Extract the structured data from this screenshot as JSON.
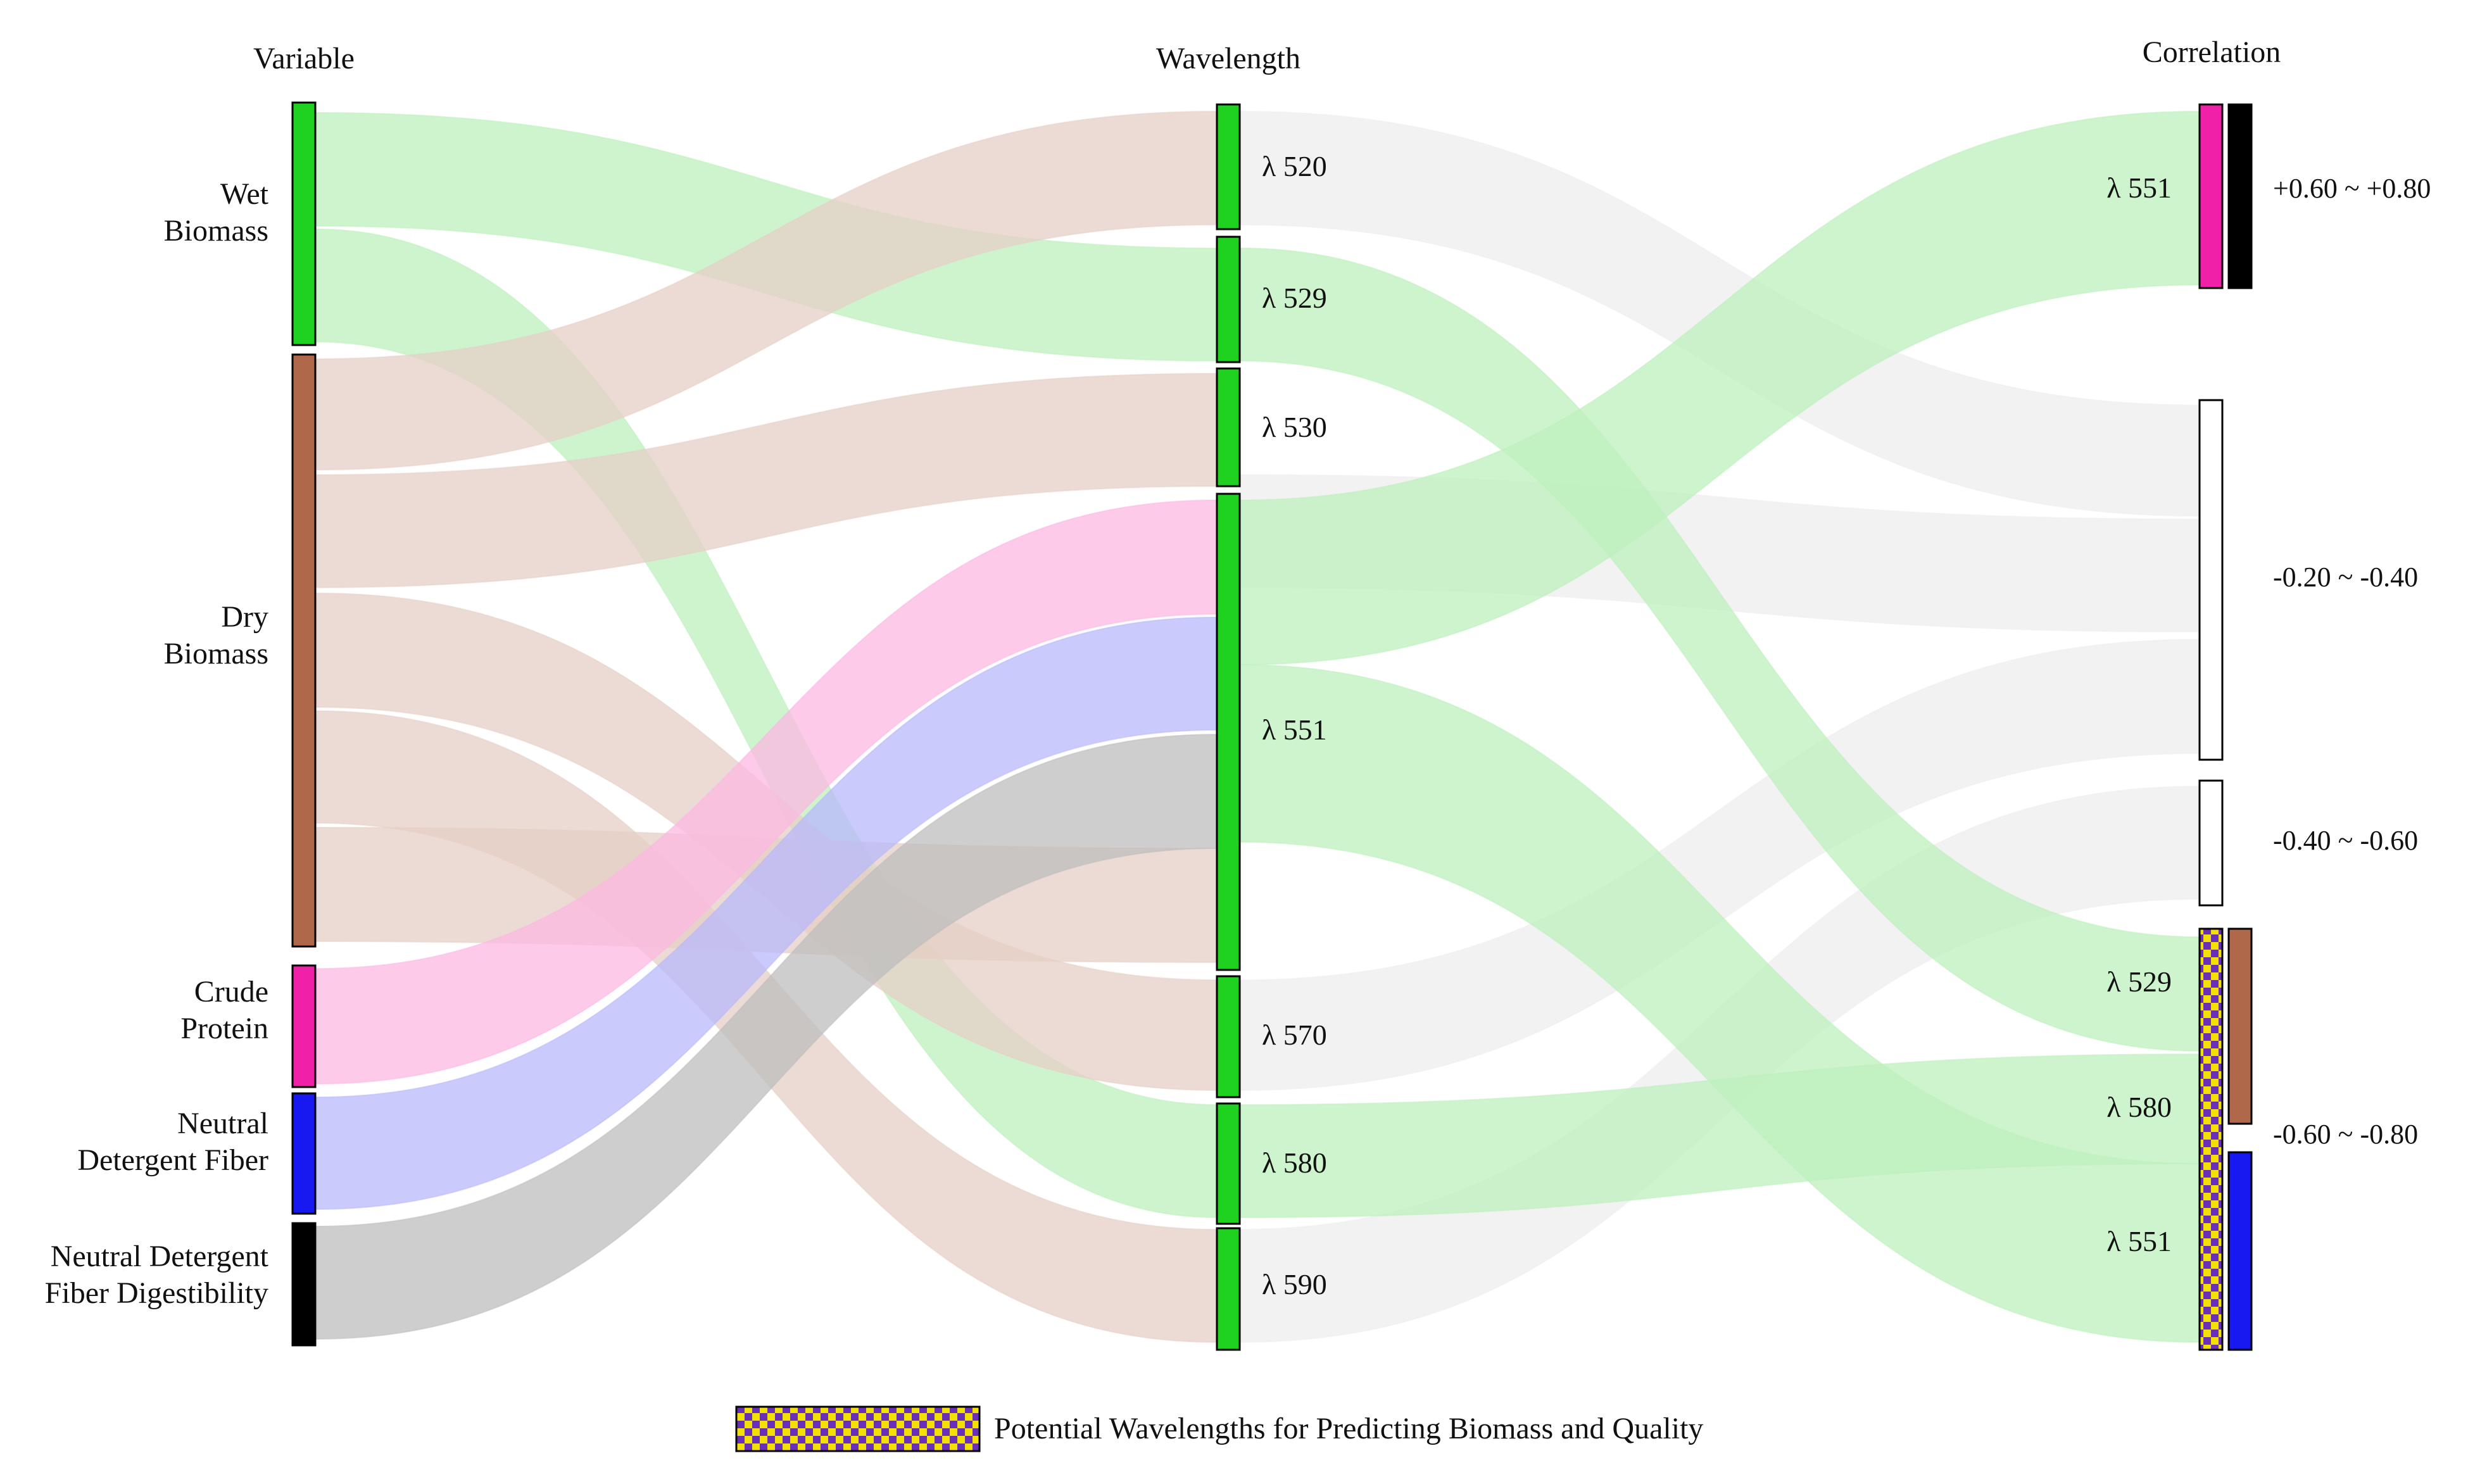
{
  "headers": {
    "variable": "Variable",
    "wavelength": "Wavelength",
    "correlation": "Correlation"
  },
  "colors": {
    "wet_biomass": "#1fd21f",
    "dry_biomass": "#b0684a",
    "crude_protein": "#f020a8",
    "ndf": "#1818f0",
    "ndfd": "#000000",
    "wavelength_node": "#1fd21f",
    "flow_wet": "#bdf0bd",
    "flow_dry": "#e6cfc5",
    "flow_cp": "#fcb8e2",
    "flow_ndf": "#b8b8fb",
    "flow_ndfd": "#bdbdbd",
    "flow_neutral": "#eeeeee",
    "checker_a": "#f4e000",
    "checker_b": "#6a2fb8"
  },
  "variables": [
    {
      "id": "wet",
      "lines": [
        "Wet",
        "Biomass"
      ]
    },
    {
      "id": "dry",
      "lines": [
        "Dry",
        "Biomass"
      ]
    },
    {
      "id": "cp",
      "lines": [
        "Crude",
        "Protein"
      ]
    },
    {
      "id": "ndf",
      "lines": [
        "Neutral",
        "Detergent Fiber"
      ]
    },
    {
      "id": "ndfd",
      "lines": [
        "Neutral Detergent",
        "Fiber Digestibility"
      ]
    }
  ],
  "wavelengths": [
    {
      "id": "w520",
      "label": "λ 520"
    },
    {
      "id": "w529",
      "label": "λ 529"
    },
    {
      "id": "w530",
      "label": "λ 530"
    },
    {
      "id": "w551",
      "label": "λ 551"
    },
    {
      "id": "w570",
      "label": "λ 570"
    },
    {
      "id": "w580",
      "label": "λ 580"
    },
    {
      "id": "w590",
      "label": "λ 590"
    }
  ],
  "correlations": [
    {
      "id": "c1",
      "range": "+0.60 ~ +0.80",
      "labels": [
        "λ 551"
      ]
    },
    {
      "id": "c2",
      "range": "-0.20 ~ -0.40",
      "labels": []
    },
    {
      "id": "c3",
      "range": "-0.40 ~ -0.60",
      "labels": []
    },
    {
      "id": "c4",
      "range": "-0.60 ~ -0.80",
      "labels": [
        "λ 529",
        "λ 580",
        "λ 551"
      ]
    }
  ],
  "flows_variable_to_wavelength": [
    {
      "from": "wet",
      "to": "w529",
      "value": 1
    },
    {
      "from": "wet",
      "to": "w580",
      "value": 1
    },
    {
      "from": "dry",
      "to": "w520",
      "value": 1
    },
    {
      "from": "dry",
      "to": "w530",
      "value": 1
    },
    {
      "from": "dry",
      "to": "w570",
      "value": 1
    },
    {
      "from": "dry",
      "to": "w590",
      "value": 1
    },
    {
      "from": "dry",
      "to": "w551",
      "value": 1
    },
    {
      "from": "cp",
      "to": "w551",
      "value": 1
    },
    {
      "from": "ndf",
      "to": "w551",
      "value": 1
    },
    {
      "from": "ndfd",
      "to": "w551",
      "value": 1
    }
  ],
  "flows_wavelength_to_correlation": [
    {
      "from": "w520",
      "to": "c2",
      "value": 1
    },
    {
      "from": "w529",
      "to": "c4",
      "value": 1
    },
    {
      "from": "w530",
      "to": "c2",
      "value": 1
    },
    {
      "from": "w551",
      "to": "c1",
      "value": 1
    },
    {
      "from": "w551",
      "to": "c4",
      "value": 1
    },
    {
      "from": "w570",
      "to": "c2",
      "value": 1
    },
    {
      "from": "w580",
      "to": "c4",
      "value": 1
    },
    {
      "from": "w590",
      "to": "c3",
      "value": 1
    }
  ],
  "legend": {
    "label": "Potential Wavelengths for Predicting Biomass and Quality"
  }
}
